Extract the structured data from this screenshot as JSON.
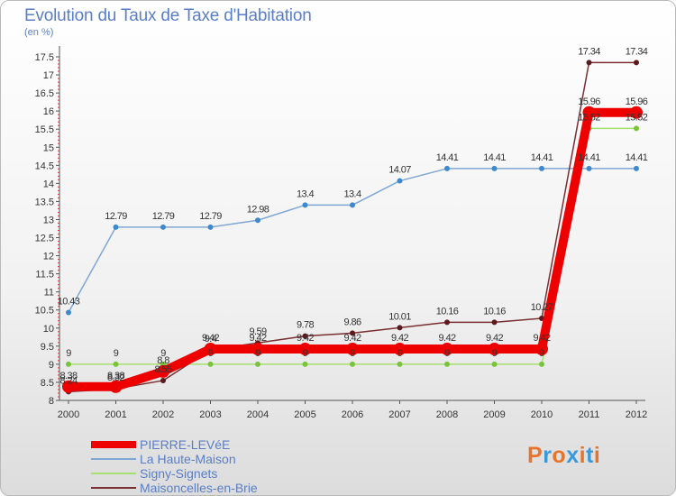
{
  "title": "Evolution du Taux de Taxe d'Habitation",
  "unit": "(en %)",
  "brand": {
    "text": "Proxiti",
    "letters": [
      "P",
      "r",
      "o",
      "x",
      "i",
      "t",
      "i"
    ],
    "colors": [
      "#e8742b",
      "#3a9ad9",
      "#e8742b",
      "#3a9ad9",
      "#e8742b",
      "#3a9ad9",
      "#e8742b"
    ]
  },
  "chart_data": {
    "type": "line",
    "title": "Evolution du Taux de Taxe d'Habitation",
    "ylabel": "(en %)",
    "ylim": [
      8,
      17.5
    ],
    "yticks": [
      "8",
      "8.5",
      "9",
      "9.5",
      "10",
      "10.5",
      "11",
      "11.5",
      "12",
      "12.5",
      "13",
      "13.5",
      "14",
      "14.5",
      "15",
      "15.5",
      "16",
      "16.5",
      "17",
      "17.5"
    ],
    "x": [
      "2000",
      "2001",
      "2002",
      "2003",
      "2004",
      "2005",
      "2006",
      "2007",
      "2008",
      "2009",
      "2010",
      "2011",
      "2012"
    ],
    "legend_position": "bottom-left",
    "grid": false,
    "series": [
      {
        "name": "PIERRE-LEVéE",
        "color": "#ee0000",
        "line_width": 10,
        "marker_color": "#ee0000",
        "values": [
          8.38,
          8.38,
          8.8,
          9.42,
          9.42,
          9.42,
          9.42,
          9.42,
          9.42,
          9.42,
          9.42,
          15.96,
          15.96
        ],
        "labels": [
          "8.38",
          "8.38",
          "8.8",
          "9.42",
          "9.42",
          "9.42",
          "9.42",
          "9.42",
          "9.42",
          "9.42",
          "9.42",
          "15.96",
          "15.96"
        ]
      },
      {
        "name": "La Haute-Maison",
        "color": "#7fa7d4",
        "line_width": 1.5,
        "marker_color": "#3e88cc",
        "values": [
          10.43,
          12.79,
          12.79,
          12.79,
          12.98,
          13.4,
          13.4,
          14.07,
          14.41,
          14.41,
          14.41,
          14.41,
          14.41
        ],
        "labels": [
          "10.43",
          "12.79",
          "12.79",
          "12.79",
          "12.98",
          "13.4",
          "13.4",
          "14.07",
          "14.41",
          "14.41",
          "14.41",
          "14.41",
          "14.41"
        ]
      },
      {
        "name": "Signy-Signets",
        "color": "#a6df6f",
        "line_width": 1.5,
        "marker_color": "#79c43b",
        "values": [
          9,
          9,
          9,
          9,
          9,
          9,
          9,
          9,
          9,
          9,
          9,
          15.52,
          15.52
        ],
        "labels": [
          "9",
          "9",
          "9",
          "9",
          "9",
          "9",
          "9",
          "9",
          "9",
          "9",
          "9",
          "15.52",
          "15.52"
        ]
      },
      {
        "name": "Maisoncelles-en-Brie",
        "color": "#7a2f33",
        "line_width": 1.5,
        "marker_color": "#5a1a1e",
        "values": [
          8.24,
          8.32,
          8.55,
          9.4,
          9.59,
          9.78,
          9.86,
          10.01,
          10.16,
          10.16,
          10.27,
          17.34,
          17.34
        ],
        "labels": [
          "8.24",
          "8.32",
          "8.55",
          "9.4",
          "9.59",
          "9.78",
          "9.86",
          "10.01",
          "10.16",
          "10.16",
          "10.27",
          "17.34",
          "17.34"
        ]
      }
    ]
  }
}
